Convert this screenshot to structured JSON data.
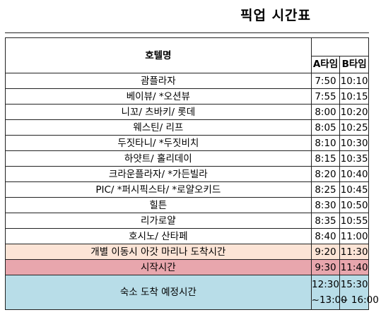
{
  "title": "픽업 시간표",
  "headers": {
    "hotel": "호텔명",
    "a": "A타임",
    "b": "B타임"
  },
  "rows": [
    {
      "name": "괌플라자",
      "a": "7:50",
      "b": "10:10"
    },
    {
      "name": "베이뷰/ *오션뷰",
      "a": "7:55",
      "b": "10:15"
    },
    {
      "name": "니꼬/ 츠바키/ 롯데",
      "a": "8:00",
      "b": "10:20"
    },
    {
      "name": "웨스틴/ 리프",
      "a": "8:05",
      "b": "10:25"
    },
    {
      "name": "두짓타니/ *두짓비치",
      "a": "8:10",
      "b": "10:30"
    },
    {
      "name": "하얏트/ 홀리데이",
      "a": "8:15",
      "b": "10:35"
    },
    {
      "name": "크라운플라자/ *가든빌라",
      "a": "8:20",
      "b": "10:40"
    },
    {
      "name": "PIC/ *퍼시픽스타/ *로얄오키드",
      "a": "8:25",
      "b": "10:45"
    },
    {
      "name": "힐튼",
      "a": "8:30",
      "b": "10:50"
    },
    {
      "name": "리가로얄",
      "a": "8:35",
      "b": "10:55"
    },
    {
      "name": "호시노/ 산타페",
      "a": "8:40",
      "b": "11:00"
    }
  ],
  "special": {
    "individual": {
      "name": "개별 이동시 아갓 마리나 도착시간",
      "a": "9:20",
      "b": "11:30",
      "color": "#fce4d6"
    },
    "start": {
      "name": "시작시간",
      "a": "9:30",
      "b": "11:40",
      "color": "#e8a6ad"
    },
    "arrival": {
      "name": "숙소 도착 예정시간",
      "a_line1": "12:30",
      "a_line2": "~13:00",
      "b_line1": "15:30",
      "b_line2": "~ 16:00",
      "color": "#b8dde8"
    }
  }
}
